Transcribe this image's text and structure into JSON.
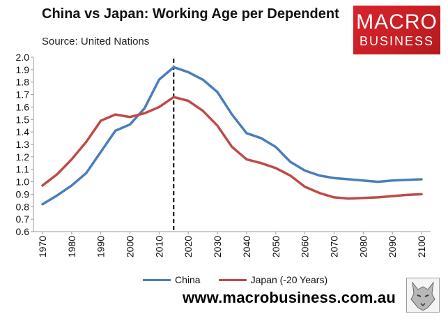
{
  "header": {
    "title": "China vs Japan: Working Age per Dependent",
    "source": "Source: United Nations"
  },
  "logo": {
    "line1": "MACRO",
    "line2": "BUSINESS"
  },
  "footer": {
    "website": "www.macrobusiness.com.au"
  },
  "colors": {
    "china": "#4a7ebb",
    "japan": "#be4b48",
    "axis": "#999999"
  },
  "chart_data": {
    "type": "line",
    "title": "China vs Japan: Working Age per Dependent",
    "x": [
      1970,
      1975,
      1980,
      1985,
      1990,
      1995,
      2000,
      2005,
      2010,
      2015,
      2020,
      2025,
      2030,
      2035,
      2040,
      2045,
      2050,
      2055,
      2060,
      2065,
      2070,
      2075,
      2080,
      2085,
      2090,
      2095,
      2100
    ],
    "x_ticks": [
      1970,
      1980,
      1990,
      2000,
      2010,
      2020,
      2030,
      2040,
      2050,
      2060,
      2070,
      2080,
      2090,
      2100
    ],
    "ylim": [
      0.6,
      2.0
    ],
    "y_ticks": [
      "0.6",
      "0.7",
      "0.8",
      "0.9",
      "1.0",
      "1.1",
      "1.2",
      "1.3",
      "1.4",
      "1.5",
      "1.6",
      "1.7",
      "1.8",
      "1.9",
      "2.0"
    ],
    "vertical_line_x": 2015,
    "legend_position": "bottom",
    "grid": false,
    "series": [
      {
        "name": "China",
        "values": [
          0.82,
          0.89,
          0.97,
          1.07,
          1.24,
          1.41,
          1.46,
          1.59,
          1.82,
          1.92,
          1.88,
          1.82,
          1.72,
          1.54,
          1.39,
          1.35,
          1.28,
          1.16,
          1.09,
          1.05,
          1.03,
          1.02,
          1.01,
          1.0,
          1.01,
          1.015,
          1.02
        ]
      },
      {
        "name": "Japan (-20 Years)",
        "values": [
          0.97,
          1.06,
          1.18,
          1.32,
          1.49,
          1.54,
          1.52,
          1.55,
          1.6,
          1.68,
          1.65,
          1.57,
          1.45,
          1.28,
          1.18,
          1.15,
          1.11,
          1.05,
          0.96,
          0.91,
          0.875,
          0.865,
          0.87,
          0.875,
          0.885,
          0.895,
          0.9
        ]
      }
    ]
  }
}
